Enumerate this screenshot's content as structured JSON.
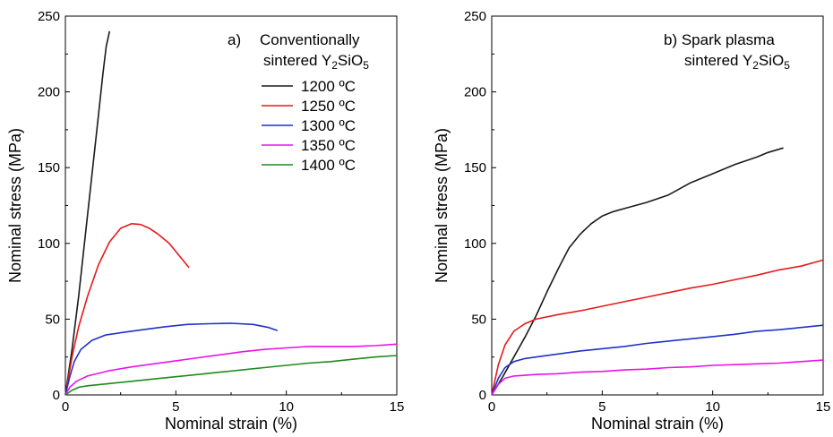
{
  "chart_data": [
    {
      "type": "line",
      "panel_label": "a)",
      "title_lines": [
        "Conventionally",
        "sintered Y",
        "SiO"
      ],
      "title_subscripts": [
        "2",
        "5"
      ],
      "xlabel": "Nominal strain (%)",
      "ylabel": "Nominal stress (MPa)",
      "xlim": [
        0,
        15
      ],
      "ylim": [
        0,
        250
      ],
      "xticks": [
        "0",
        "5",
        "10",
        "15"
      ],
      "yticks": [
        "0",
        "50",
        "100",
        "150",
        "200",
        "250"
      ],
      "legend": "top-right",
      "grid": false,
      "series": [
        {
          "name": "1200 ºC",
          "color": "#1a1a1a",
          "points": [
            [
              0,
              0
            ],
            [
              0.3,
              30
            ],
            [
              0.6,
              65
            ],
            [
              0.9,
              105
            ],
            [
              1.2,
              145
            ],
            [
              1.5,
              185
            ],
            [
              1.7,
              212
            ],
            [
              1.85,
              230
            ],
            [
              2.0,
              240
            ]
          ]
        },
        {
          "name": "1250 ºC",
          "color": "#e8191c",
          "points": [
            [
              0,
              0
            ],
            [
              0.3,
              25
            ],
            [
              0.6,
              45
            ],
            [
              1.0,
              65
            ],
            [
              1.5,
              86
            ],
            [
              2.0,
              101
            ],
            [
              2.5,
              110
            ],
            [
              3.0,
              113
            ],
            [
              3.4,
              112.5
            ],
            [
              3.8,
              110
            ],
            [
              4.2,
              106
            ],
            [
              4.7,
              100
            ],
            [
              5.2,
              91
            ],
            [
              5.6,
              84
            ]
          ]
        },
        {
          "name": "1300 ºC",
          "color": "#1f32c8",
          "points": [
            [
              0,
              0
            ],
            [
              0.2,
              12
            ],
            [
              0.4,
              22
            ],
            [
              0.7,
              30
            ],
            [
              1.2,
              36
            ],
            [
              1.8,
              39.5
            ],
            [
              2.5,
              41
            ],
            [
              3.5,
              43
            ],
            [
              4.5,
              45
            ],
            [
              5.5,
              46.5
            ],
            [
              6.5,
              47
            ],
            [
              7.5,
              47.3
            ],
            [
              8.5,
              46.5
            ],
            [
              9.2,
              44.5
            ],
            [
              9.6,
              42.5
            ]
          ]
        },
        {
          "name": "1350 ºC",
          "color": "#e814e8",
          "points": [
            [
              0,
              0
            ],
            [
              0.2,
              5
            ],
            [
              0.5,
              9
            ],
            [
              1.0,
              12.5
            ],
            [
              2.0,
              16
            ],
            [
              3.0,
              18.5
            ],
            [
              4.0,
              20.5
            ],
            [
              5.0,
              22.5
            ],
            [
              6.0,
              24.5
            ],
            [
              7.0,
              26.5
            ],
            [
              8.0,
              28.5
            ],
            [
              9.0,
              30
            ],
            [
              10.0,
              31
            ],
            [
              11.0,
              32
            ],
            [
              12.0,
              32
            ],
            [
              13.0,
              32
            ],
            [
              14.0,
              32.5
            ],
            [
              15.0,
              33.5
            ]
          ]
        },
        {
          "name": "1400 ºC",
          "color": "#1f8a1f",
          "points": [
            [
              0,
              0
            ],
            [
              0.3,
              3
            ],
            [
              0.6,
              5
            ],
            [
              1.0,
              6
            ],
            [
              2.0,
              7.5
            ],
            [
              3.0,
              9
            ],
            [
              4.0,
              10.5
            ],
            [
              5.0,
              12
            ],
            [
              6.0,
              13.5
            ],
            [
              7.0,
              15
            ],
            [
              8.0,
              16.5
            ],
            [
              9.0,
              18
            ],
            [
              10.0,
              19.5
            ],
            [
              11.0,
              21
            ],
            [
              12.0,
              22
            ],
            [
              13.0,
              23.5
            ],
            [
              14.0,
              25
            ],
            [
              15.0,
              26
            ]
          ]
        }
      ]
    },
    {
      "type": "line",
      "panel_label": "b)",
      "title_lines": [
        "Spark plasma",
        "sintered Y",
        "SiO"
      ],
      "title_subscripts": [
        "2",
        "5"
      ],
      "xlabel": "Nominal strain (%)",
      "ylabel": "Nominal stress (MPa)",
      "xlim": [
        0,
        15
      ],
      "ylim": [
        0,
        250
      ],
      "xticks": [
        "0",
        "5",
        "10",
        "15"
      ],
      "yticks": [
        "0",
        "50",
        "100",
        "150",
        "200",
        "250"
      ],
      "grid": false,
      "series": [
        {
          "name": "1200 ºC",
          "color": "#1a1a1a",
          "points": [
            [
              0,
              0
            ],
            [
              0.5,
              12
            ],
            [
              1.0,
              25
            ],
            [
              1.5,
              38
            ],
            [
              2.0,
              52
            ],
            [
              2.5,
              68
            ],
            [
              3.0,
              83
            ],
            [
              3.5,
              97
            ],
            [
              4.0,
              106
            ],
            [
              4.5,
              113
            ],
            [
              5.0,
              118
            ],
            [
              5.5,
              121
            ],
            [
              6.0,
              123
            ],
            [
              7.0,
              127
            ],
            [
              8.0,
              132
            ],
            [
              9.0,
              140
            ],
            [
              10.0,
              146
            ],
            [
              11.0,
              152
            ],
            [
              12.0,
              157
            ],
            [
              12.5,
              160
            ],
            [
              13.2,
              163
            ]
          ]
        },
        {
          "name": "1250 ºC",
          "color": "#e8191c",
          "points": [
            [
              0,
              0
            ],
            [
              0.3,
              20
            ],
            [
              0.6,
              33
            ],
            [
              1.0,
              42
            ],
            [
              1.5,
              47
            ],
            [
              2.0,
              50
            ],
            [
              3.0,
              53
            ],
            [
              4.0,
              55.5
            ],
            [
              5.0,
              58.5
            ],
            [
              6.0,
              61.5
            ],
            [
              7.0,
              64.5
            ],
            [
              8.0,
              67.5
            ],
            [
              9.0,
              70.5
            ],
            [
              10.0,
              73
            ],
            [
              11.0,
              76
            ],
            [
              12.0,
              79
            ],
            [
              13.0,
              82.5
            ],
            [
              14.0,
              85
            ],
            [
              15.0,
              89
            ]
          ]
        },
        {
          "name": "1300 ºC",
          "color": "#1f32c8",
          "points": [
            [
              0,
              0
            ],
            [
              0.3,
              11
            ],
            [
              0.6,
              18
            ],
            [
              1.0,
              22
            ],
            [
              1.5,
              24
            ],
            [
              2.0,
              25
            ],
            [
              3.0,
              27
            ],
            [
              4.0,
              29
            ],
            [
              5.0,
              30.5
            ],
            [
              6.0,
              32
            ],
            [
              7.0,
              34
            ],
            [
              8.0,
              35.5
            ],
            [
              9.0,
              37
            ],
            [
              10.0,
              38.5
            ],
            [
              11.0,
              40
            ],
            [
              12.0,
              42
            ],
            [
              13.0,
              43
            ],
            [
              14.0,
              44.5
            ],
            [
              15.0,
              46
            ]
          ]
        },
        {
          "name": "1350 ºC",
          "color": "#e814e8",
          "points": [
            [
              0,
              0
            ],
            [
              0.3,
              7
            ],
            [
              0.6,
              11
            ],
            [
              1.0,
              12.5
            ],
            [
              2.0,
              13.5
            ],
            [
              3.0,
              14
            ],
            [
              4.0,
              15
            ],
            [
              5.0,
              15.5
            ],
            [
              6.0,
              16.5
            ],
            [
              7.0,
              17
            ],
            [
              8.0,
              18
            ],
            [
              9.0,
              18.5
            ],
            [
              10.0,
              19.5
            ],
            [
              11.0,
              20
            ],
            [
              12.0,
              20.5
            ],
            [
              13.0,
              21
            ],
            [
              14.0,
              22
            ],
            [
              15.0,
              23
            ]
          ]
        }
      ]
    }
  ]
}
